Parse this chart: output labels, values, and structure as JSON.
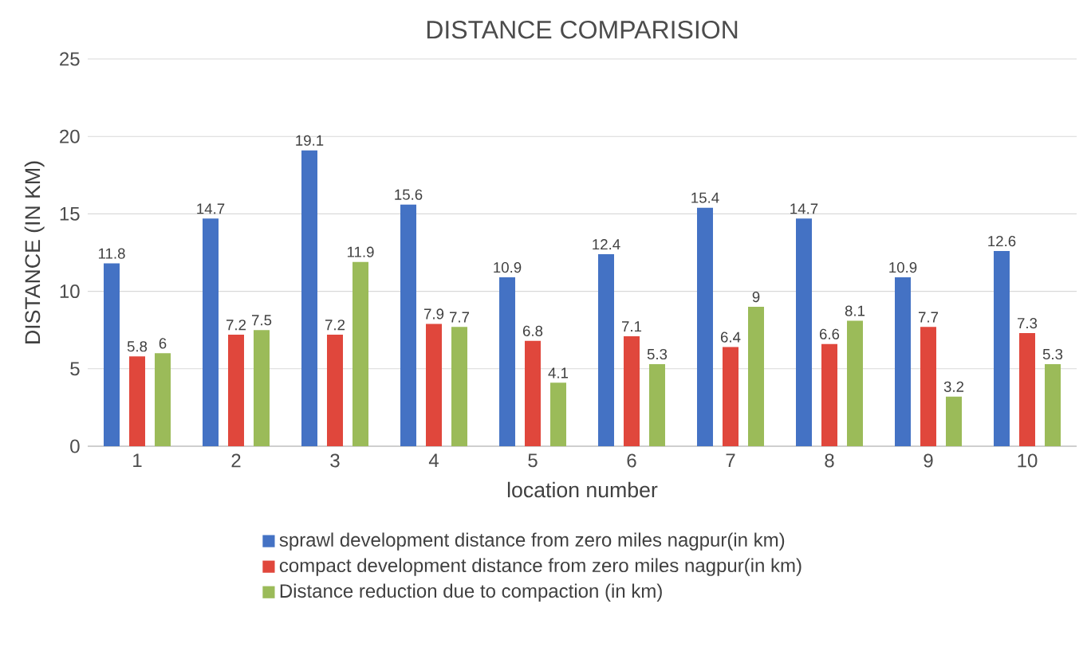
{
  "chart_data": {
    "type": "bar",
    "title": "DISTANCE COMPARISION",
    "xlabel": "location number",
    "ylabel": "DISTANCE (IN KM)",
    "categories": [
      "1",
      "2",
      "3",
      "4",
      "5",
      "6",
      "7",
      "8",
      "9",
      "10"
    ],
    "series": [
      {
        "name": "sprawl development distance from zero miles nagpur(in km)",
        "color": "#4472c4",
        "values": [
          11.8,
          14.7,
          19.1,
          15.6,
          10.9,
          12.4,
          15.4,
          14.7,
          10.9,
          12.6
        ]
      },
      {
        "name": "compact development distance from zero miles nagpur(in km)",
        "color": "#e0473c",
        "values": [
          5.8,
          7.2,
          7.2,
          7.9,
          6.8,
          7.1,
          6.4,
          6.6,
          7.7,
          7.3
        ]
      },
      {
        "name": "Distance reduction due to compaction (in km)",
        "color": "#9bbb59",
        "values": [
          6,
          7.5,
          11.9,
          7.7,
          4.1,
          5.3,
          9,
          8.1,
          3.2,
          5.3
        ]
      }
    ],
    "ylim": [
      0,
      25
    ],
    "yticks": [
      0,
      5,
      10,
      15,
      20,
      25
    ],
    "grid": "y",
    "legend": "bottom",
    "data_labels": true
  }
}
